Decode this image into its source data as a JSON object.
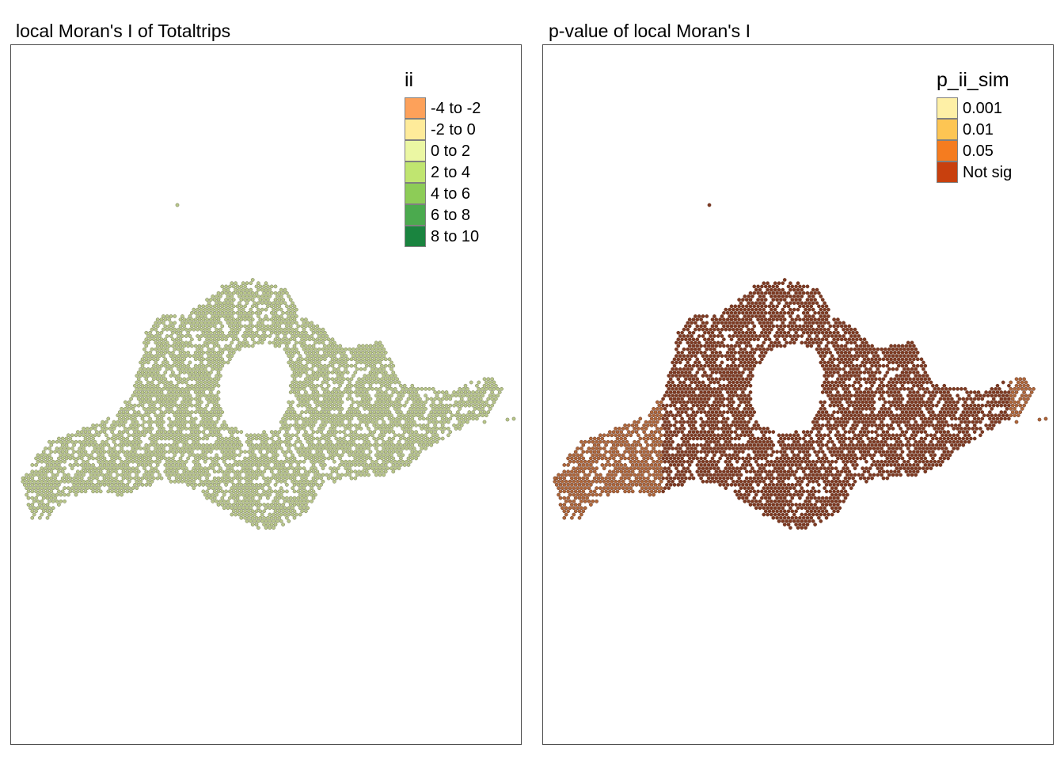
{
  "panels": [
    {
      "title": "local Moran's I of Totaltrips",
      "legend": {
        "title": "ii",
        "items": [
          {
            "label": "-4 to -2",
            "color": "#FDA15A"
          },
          {
            "label": "-2 to 0",
            "color": "#FEEB9A"
          },
          {
            "label": "0 to 2",
            "color": "#EBF7A3"
          },
          {
            "label": "2 to 4",
            "color": "#C0E570"
          },
          {
            "label": "4 to 6",
            "color": "#8DCC57"
          },
          {
            "label": "6 to 8",
            "color": "#4BAA4E"
          },
          {
            "label": "8 to 10",
            "color": "#1A843F"
          }
        ]
      },
      "point_fill": "#B9C78A",
      "point_stroke": "#6E7550"
    },
    {
      "title": "p-value of local Moran's I",
      "legend": {
        "title": "p_ii_sim",
        "items": [
          {
            "label": "0.001",
            "color": "#FEF0A6"
          },
          {
            "label": "0.01",
            "color": "#FDC553"
          },
          {
            "label": "0.05",
            "color": "#F57C1F"
          },
          {
            "label": "Not sig",
            "color": "#C8400E"
          }
        ]
      },
      "point_fill": "#7E3A22",
      "point_stroke": "#5E2A18",
      "edge_fill": "#B0683A"
    }
  ]
}
